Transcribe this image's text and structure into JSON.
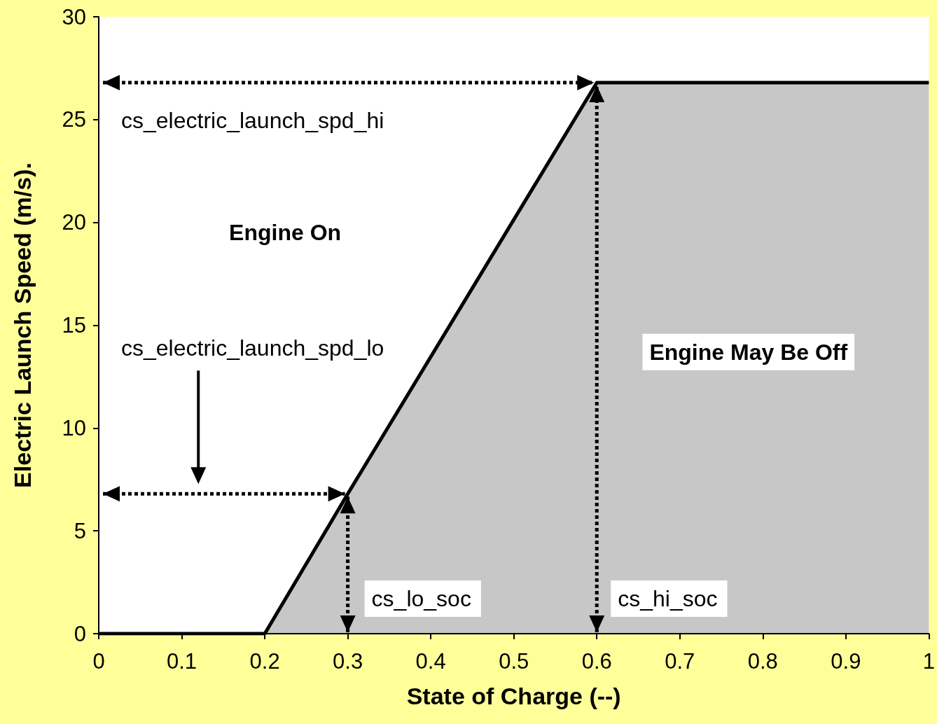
{
  "chart_data": {
    "type": "area",
    "xlabel": "State of Charge (--)",
    "ylabel": "Electric Launch Speed (m/s).",
    "x": [
      0,
      0.2,
      0.3,
      0.6,
      1
    ],
    "series": [
      {
        "color": "#000000",
        "values": [
          0,
          0,
          6.8,
          26.8,
          26.8
        ]
      }
    ],
    "xlim": [
      0,
      1
    ],
    "xticks": [
      0,
      0.1,
      0.2,
      0.3,
      0.4,
      0.5,
      0.6,
      0.7,
      0.8,
      0.9,
      1
    ],
    "ylim": [
      0,
      30
    ],
    "yticks": [
      0,
      5,
      10,
      15,
      20,
      25,
      30
    ],
    "marker": "none",
    "line_style": "solid",
    "annotations": [
      "cs_electric_launch_spd_hi",
      "cs_electric_launch_spd_lo",
      "cs_lo_soc",
      "cs_hi_soc",
      "Engine On",
      "Engine May Be Off"
    ]
  }
}
